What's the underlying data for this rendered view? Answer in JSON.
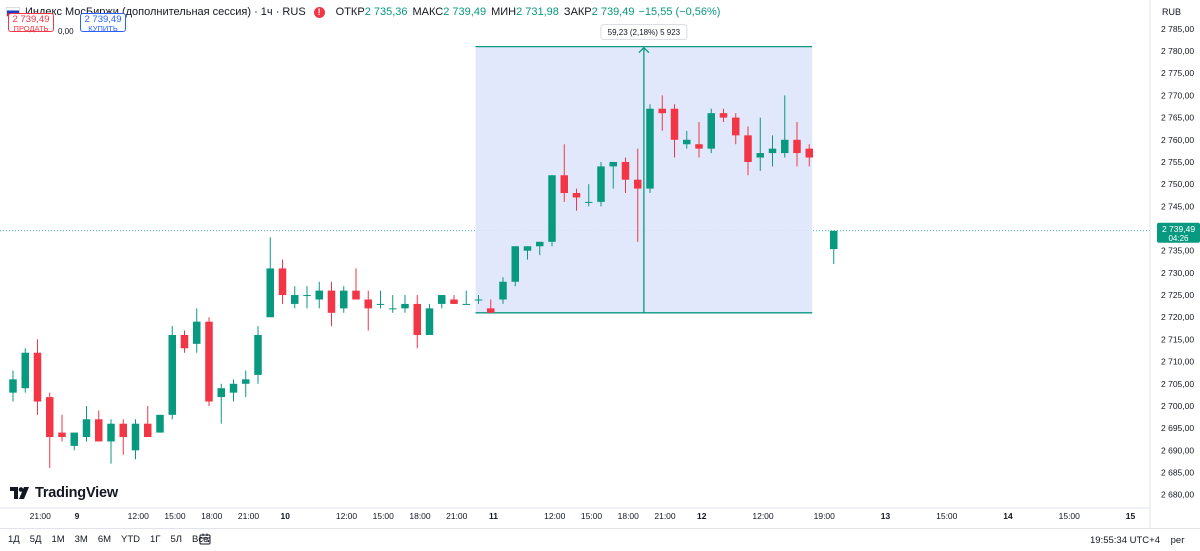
{
  "header": {
    "title": "Индекс МосБиржи (дополнительная сессия) · 1ч · RUS",
    "ohlc": [
      {
        "label": "ОТКР",
        "value": "2 735,36"
      },
      {
        "label": "МАКС",
        "value": "2 739,49"
      },
      {
        "label": "МИН",
        "value": "2 731,98"
      },
      {
        "label": "ЗАКР",
        "value": "2 739,49"
      }
    ],
    "change": "−15,55 (−0,56%)",
    "currency": "RUB"
  },
  "trade": {
    "sell_price": "2 739,49",
    "sell_label": "ПРОДАТЬ",
    "spread": "0,00",
    "buy_price": "2 739,49",
    "buy_label": "КУПИТЬ"
  },
  "logo_text": "TradingView",
  "bottom": {
    "ranges": [
      "1Д",
      "5Д",
      "1М",
      "3М",
      "6М",
      "YTD",
      "1Г",
      "5Л",
      "Все"
    ],
    "clock": "19:55:34 UTC+4",
    "extra": "рег"
  },
  "colors": {
    "up": "#089981",
    "down": "#f23645",
    "measure_fill": "#dfe6fb",
    "measure_line": "#089981",
    "last_price_bg": "#089981"
  },
  "chart_data": {
    "type": "candlestick",
    "ylim": [
      2677,
      2787
    ],
    "y_ticks": [
      2680,
      2685,
      2690,
      2695,
      2700,
      2705,
      2710,
      2715,
      2720,
      2725,
      2730,
      2735,
      2740,
      2745,
      2750,
      2755,
      2760,
      2765,
      2770,
      2775,
      2780,
      2785
    ],
    "y_tick_labels": [
      "2 680,00",
      "2 685,00",
      "2 690,00",
      "2 695,00",
      "2 700,00",
      "2 705,00",
      "2 710,00",
      "2 715,00",
      "2 720,00",
      "2 725,00",
      "2 730,00",
      "2 735,00",
      "2 740,00",
      "2 745,00",
      "2 750,00",
      "2 755,00",
      "2 760,00",
      "2 765,00",
      "2 770,00",
      "2 775,00",
      "2 780,00",
      "2 785,00"
    ],
    "x_labels": [
      {
        "i": 1,
        "label": "21:00"
      },
      {
        "i": 4,
        "label": "9"
      },
      {
        "i": 9,
        "label": "12:00"
      },
      {
        "i": 12,
        "label": "15:00"
      },
      {
        "i": 15,
        "label": "18:00"
      },
      {
        "i": 18,
        "label": "21:00"
      },
      {
        "i": 21,
        "label": "10"
      },
      {
        "i": 26,
        "label": "12:00"
      },
      {
        "i": 29,
        "label": "15:00"
      },
      {
        "i": 32,
        "label": "18:00"
      },
      {
        "i": 35,
        "label": "21:00"
      },
      {
        "i": 38,
        "label": "11"
      },
      {
        "i": 43,
        "label": "12:00"
      },
      {
        "i": 46,
        "label": "15:00"
      },
      {
        "i": 49,
        "label": "18:00"
      },
      {
        "i": 52,
        "label": "21:00"
      },
      {
        "i": 55,
        "label": "12"
      },
      {
        "i": 60,
        "label": "12:00"
      },
      {
        "i": 65,
        "label": "19:00"
      },
      {
        "i": 70,
        "label": "13"
      },
      {
        "i": 75,
        "label": "15:00"
      },
      {
        "i": 80,
        "label": "14"
      },
      {
        "i": 85,
        "label": "15:00"
      },
      {
        "i": 90,
        "label": "15"
      }
    ],
    "candles": [
      {
        "o": 2703,
        "h": 2708,
        "l": 2701,
        "c": 2706
      },
      {
        "o": 2704,
        "h": 2713,
        "l": 2703,
        "c": 2712
      },
      {
        "o": 2712,
        "h": 2715,
        "l": 2698,
        "c": 2701
      },
      {
        "o": 2702,
        "h": 2703,
        "l": 2686,
        "c": 2693
      },
      {
        "o": 2694,
        "h": 2698,
        "l": 2692,
        "c": 2693
      },
      {
        "o": 2691,
        "h": 2694,
        "l": 2690,
        "c": 2694
      },
      {
        "o": 2693,
        "h": 2700,
        "l": 2692,
        "c": 2697
      },
      {
        "o": 2697,
        "h": 2699,
        "l": 2692,
        "c": 2692
      },
      {
        "o": 2692,
        "h": 2697,
        "l": 2687,
        "c": 2696
      },
      {
        "o": 2696,
        "h": 2697,
        "l": 2689,
        "c": 2693
      },
      {
        "o": 2690,
        "h": 2697,
        "l": 2688,
        "c": 2696
      },
      {
        "o": 2696,
        "h": 2700,
        "l": 2694,
        "c": 2693
      },
      {
        "o": 2694,
        "h": 2698,
        "l": 2694,
        "c": 2698
      },
      {
        "o": 2698,
        "h": 2718,
        "l": 2697,
        "c": 2716
      },
      {
        "o": 2716,
        "h": 2717,
        "l": 2712,
        "c": 2713
      },
      {
        "o": 2714,
        "h": 2722,
        "l": 2712,
        "c": 2719
      },
      {
        "o": 2719,
        "h": 2720,
        "l": 2700,
        "c": 2701
      },
      {
        "o": 2702,
        "h": 2705,
        "l": 2696,
        "c": 2704
      },
      {
        "o": 2703,
        "h": 2706,
        "l": 2701,
        "c": 2705
      },
      {
        "o": 2705,
        "h": 2708,
        "l": 2702,
        "c": 2706
      },
      {
        "o": 2707,
        "h": 2718,
        "l": 2705,
        "c": 2716
      },
      {
        "o": 2720,
        "h": 2738,
        "l": 2720,
        "c": 2731
      },
      {
        "o": 2731,
        "h": 2733,
        "l": 2723,
        "c": 2725
      },
      {
        "o": 2723,
        "h": 2727,
        "l": 2722,
        "c": 2725
      },
      {
        "o": 2725,
        "h": 2727,
        "l": 2722,
        "c": 2725
      },
      {
        "o": 2724,
        "h": 2728,
        "l": 2722,
        "c": 2726
      },
      {
        "o": 2726,
        "h": 2728,
        "l": 2718,
        "c": 2721
      },
      {
        "o": 2722,
        "h": 2727,
        "l": 2721,
        "c": 2726
      },
      {
        "o": 2726,
        "h": 2731,
        "l": 2724,
        "c": 2724
      },
      {
        "o": 2724,
        "h": 2726,
        "l": 2717,
        "c": 2722
      },
      {
        "o": 2723,
        "h": 2726,
        "l": 2722,
        "c": 2723
      },
      {
        "o": 2722,
        "h": 2725,
        "l": 2721,
        "c": 2722
      },
      {
        "o": 2722,
        "h": 2725,
        "l": 2721,
        "c": 2723
      },
      {
        "o": 2723,
        "h": 2725,
        "l": 2713,
        "c": 2716
      },
      {
        "o": 2716,
        "h": 2723,
        "l": 2716,
        "c": 2722
      },
      {
        "o": 2723,
        "h": 2725,
        "l": 2722,
        "c": 2725
      },
      {
        "o": 2724,
        "h": 2725,
        "l": 2723,
        "c": 2723
      },
      {
        "o": 2723,
        "h": 2726,
        "l": 2723,
        "c": 2723
      },
      {
        "o": 2724,
        "h": 2725,
        "l": 2723,
        "c": 2724
      },
      {
        "o": 2722,
        "h": 2724,
        "l": 2721,
        "c": 2721
      },
      {
        "o": 2724,
        "h": 2729,
        "l": 2723,
        "c": 2728
      },
      {
        "o": 2728,
        "h": 2736,
        "l": 2727,
        "c": 2736
      },
      {
        "o": 2735,
        "h": 2736,
        "l": 2733,
        "c": 2736
      },
      {
        "o": 2736,
        "h": 2737,
        "l": 2734,
        "c": 2737
      },
      {
        "o": 2737,
        "h": 2752,
        "l": 2736,
        "c": 2752
      },
      {
        "o": 2752,
        "h": 2759,
        "l": 2746,
        "c": 2748
      },
      {
        "o": 2748,
        "h": 2749,
        "l": 2744,
        "c": 2747
      },
      {
        "o": 2746,
        "h": 2750,
        "l": 2745,
        "c": 2746
      },
      {
        "o": 2746,
        "h": 2755,
        "l": 2745,
        "c": 2754
      },
      {
        "o": 2754,
        "h": 2755,
        "l": 2749,
        "c": 2755
      },
      {
        "o": 2755,
        "h": 2756,
        "l": 2748,
        "c": 2751
      },
      {
        "o": 2751,
        "h": 2758,
        "l": 2737,
        "c": 2749
      },
      {
        "o": 2749,
        "h": 2768,
        "l": 2748,
        "c": 2767
      },
      {
        "o": 2767,
        "h": 2770,
        "l": 2762,
        "c": 2766
      },
      {
        "o": 2767,
        "h": 2768,
        "l": 2756,
        "c": 2760
      },
      {
        "o": 2759,
        "h": 2762,
        "l": 2758,
        "c": 2760
      },
      {
        "o": 2759,
        "h": 2764,
        "l": 2756,
        "c": 2758
      },
      {
        "o": 2758,
        "h": 2767,
        "l": 2757,
        "c": 2766
      },
      {
        "o": 2766,
        "h": 2767,
        "l": 2764,
        "c": 2765
      },
      {
        "o": 2765,
        "h": 2766,
        "l": 2759,
        "c": 2761
      },
      {
        "o": 2761,
        "h": 2763,
        "l": 2752,
        "c": 2755
      },
      {
        "o": 2756,
        "h": 2765,
        "l": 2753,
        "c": 2757
      },
      {
        "o": 2757,
        "h": 2761,
        "l": 2754,
        "c": 2758
      },
      {
        "o": 2757,
        "h": 2770,
        "l": 2756,
        "c": 2760
      },
      {
        "o": 2760,
        "h": 2764,
        "l": 2754,
        "c": 2757
      },
      {
        "o": 2758,
        "h": 2759,
        "l": 2754,
        "c": 2756
      }
    ],
    "gap_after_index": 64,
    "last_candle": {
      "offset_bars": 2,
      "o": 2735.36,
      "h": 2739.49,
      "l": 2731.98,
      "c": 2739.49
    },
    "measure": {
      "from_index": 38,
      "to_index": 65,
      "low": 2721,
      "high": 2781,
      "label": "59,23 (2,18%) 5 923"
    },
    "last_price": {
      "value": 2739.49,
      "label": "2 739,49",
      "countdown": "04:26"
    }
  }
}
